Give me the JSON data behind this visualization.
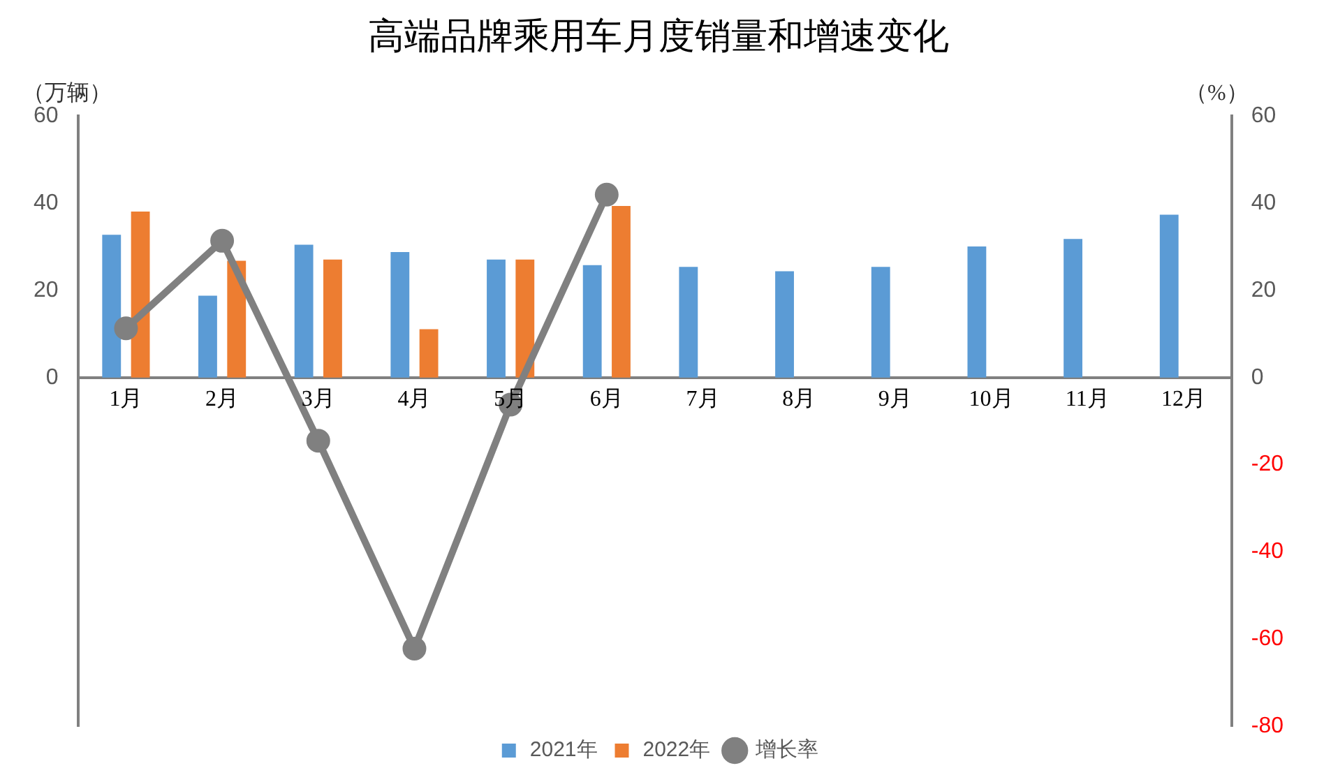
{
  "chart_data": {
    "type": "bar",
    "title": "高端品牌乘用车月度销量和增速变化",
    "ylabel": "（万辆）",
    "y2label": "（%）",
    "categories": [
      "1月",
      "2月",
      "3月",
      "4月",
      "5月",
      "6月",
      "7月",
      "8月",
      "9月",
      "10月",
      "11月",
      "12月"
    ],
    "series": [
      {
        "name": "2021年",
        "color": "#5b9bd5",
        "values": [
          32.8,
          18.8,
          30.5,
          28.8,
          27.1,
          25.8,
          25.4,
          24.4,
          25.4,
          30.1,
          31.8,
          37.4
        ]
      },
      {
        "name": "2022年",
        "color": "#ed7d31",
        "values": [
          38.1,
          26.8,
          27.1,
          11.1,
          27.1,
          39.4,
          null,
          null,
          null,
          null,
          null,
          null
        ]
      },
      {
        "name": "增长率",
        "type": "line",
        "axis": "y2",
        "color": "#808080",
        "marker": "circle",
        "values": [
          11.3,
          31.4,
          -14.5,
          -62.2,
          -6.2,
          42,
          null,
          null,
          null,
          null,
          null,
          null
        ]
      }
    ],
    "ylim": [
      -80,
      60
    ],
    "yticks": [
      0,
      20,
      40,
      60
    ],
    "y2lim": [
      -80,
      60
    ],
    "y2ticks": [
      -80,
      -60,
      -40,
      -20,
      0,
      20,
      40,
      60
    ],
    "grid": false,
    "legend": "bottom"
  }
}
